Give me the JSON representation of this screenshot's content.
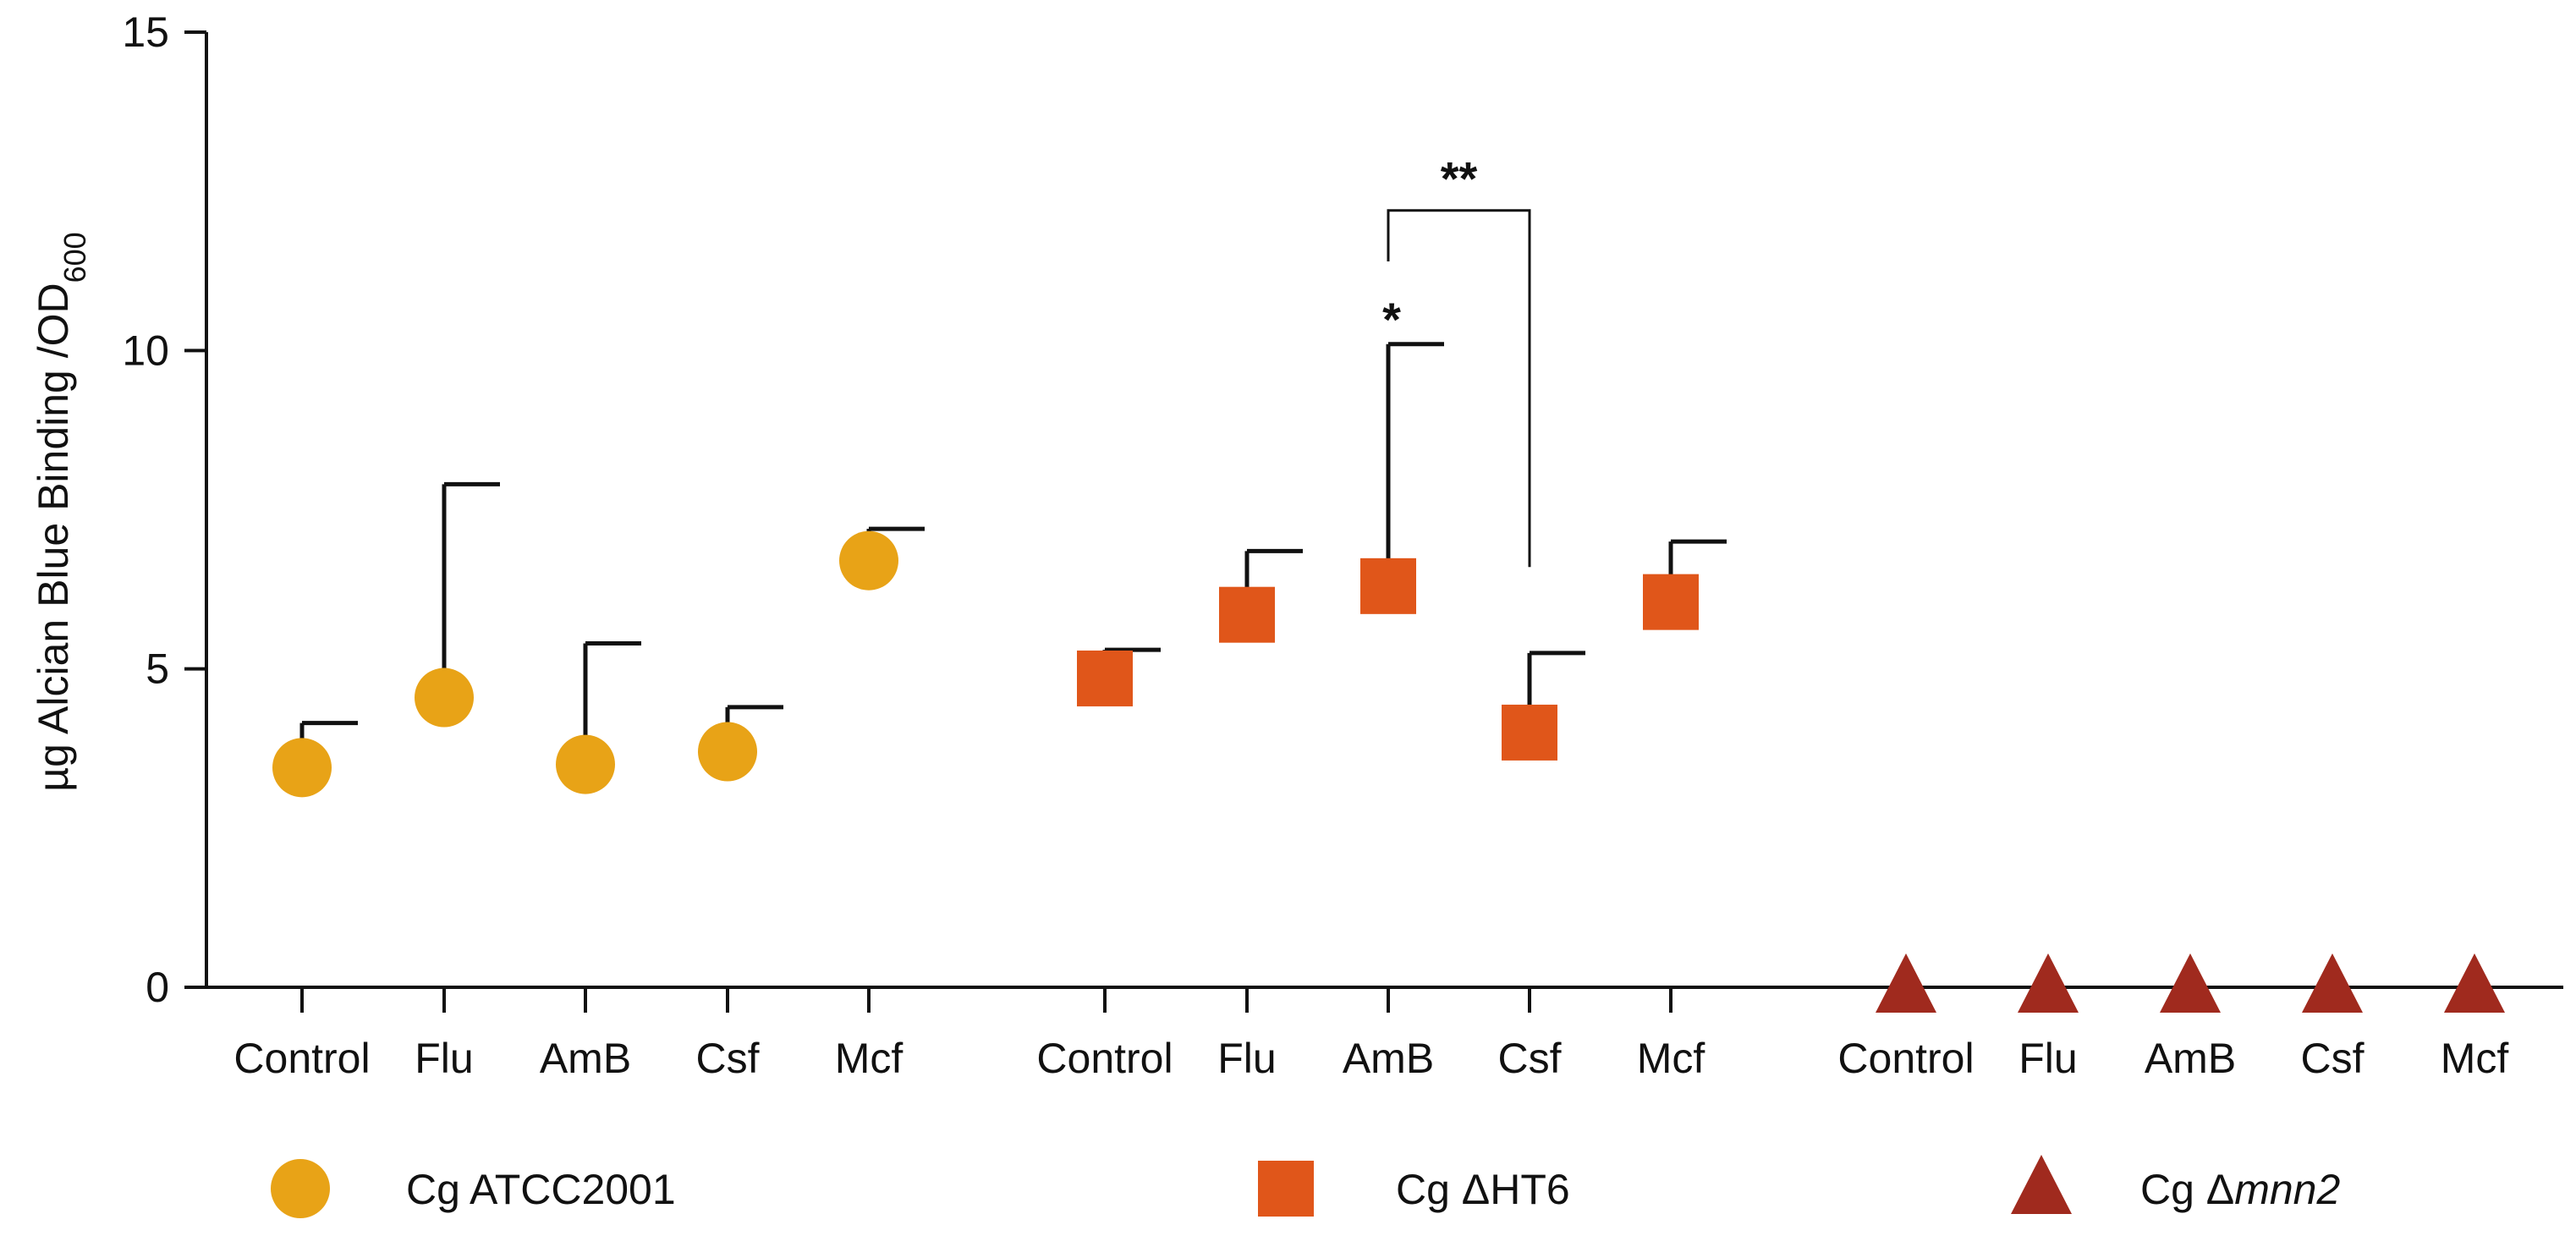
{
  "chart_data": {
    "type": "scatter",
    "title": "",
    "xlabel": "",
    "ylabel": "µg Alcian Blue Binding /OD",
    "ylabel_subscript": "600",
    "ylim": [
      0,
      15
    ],
    "yticks": [
      0,
      5,
      10,
      15
    ],
    "groups": [
      {
        "name": "Cg ATCC2001",
        "legend_prefix": "Cg ",
        "legend_main": "ATCC2001",
        "legend_italic": "",
        "marker": "circle",
        "color": "#E8A317",
        "categories": [
          "Control",
          "Flu",
          "AmB",
          "Csf",
          "Mcf"
        ],
        "values": [
          3.45,
          4.55,
          3.5,
          3.7,
          6.7
        ],
        "error_upper": [
          4.15,
          7.9,
          5.4,
          4.4,
          7.2
        ]
      },
      {
        "name": "Cg ΔHT6",
        "legend_prefix": "Cg ",
        "legend_main": "ΔHT6",
        "legend_italic": "",
        "marker": "square",
        "color": "#E0561A",
        "categories": [
          "Control",
          "Flu",
          "AmB",
          "Csf",
          "Mcf"
        ],
        "values": [
          4.85,
          5.85,
          6.3,
          4.0,
          6.05
        ],
        "error_upper": [
          5.3,
          6.85,
          10.1,
          5.25,
          7.0
        ]
      },
      {
        "name": "Cg Δmnn2",
        "legend_prefix": "Cg ",
        "legend_main": "Δ",
        "legend_italic": "mnn2",
        "marker": "triangle",
        "color": "#A02A1E",
        "categories": [
          "Control",
          "Flu",
          "AmB",
          "Csf",
          "Mcf"
        ],
        "values": [
          0,
          0,
          0,
          0,
          0
        ],
        "error_upper": [
          null,
          null,
          null,
          null,
          null
        ]
      }
    ],
    "annotations": [
      {
        "text": "*",
        "group": 1,
        "category_index": 2,
        "y": 10.1
      },
      {
        "text": "**",
        "group": 1,
        "from_index": 2,
        "to_index": 3,
        "bracket_y": 12.2,
        "from_y": 11.4,
        "to_y": 6.6
      }
    ]
  }
}
